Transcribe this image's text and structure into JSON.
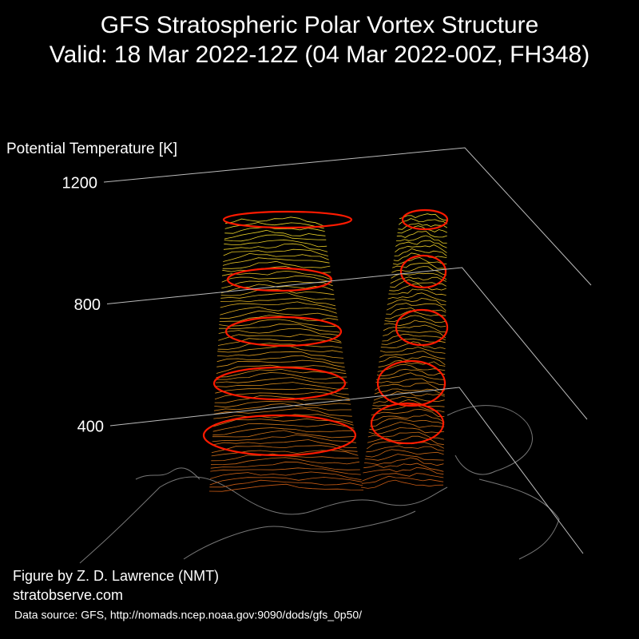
{
  "chart_data": {
    "type": "surface3d",
    "title": "GFS Stratospheric Polar Vortex Structure",
    "subtitle": "Valid: 18 Mar 2022-12Z  (04 Mar 2022-00Z, FH348)",
    "ylabel": "Potential Temperature [K]",
    "ylim": [
      400,
      1200
    ],
    "yticks": [
      400,
      800,
      1200
    ],
    "grid": true,
    "credit": "Figure by Z. D. Lawrence (NMT)",
    "website": "stratobserve.com",
    "source": "Data source: GFS, http://nomads.ncep.noaa.gov:9090/dods/gfs_0p50/"
  }
}
